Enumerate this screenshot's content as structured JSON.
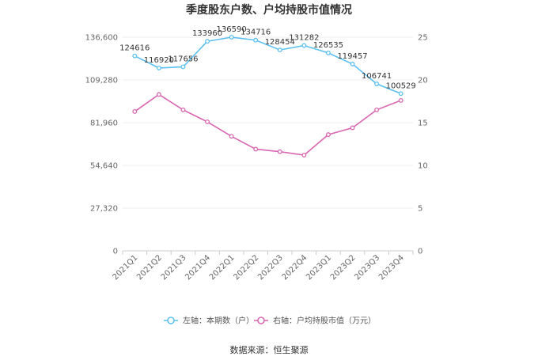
{
  "chart_data": {
    "type": "line",
    "title": "季度股东户数、户均持股市值情况",
    "categories": [
      "2021Q1",
      "2021Q2",
      "2021Q3",
      "2021Q4",
      "2022Q1",
      "2022Q2",
      "2022Q3",
      "2022Q4",
      "2023Q1",
      "2023Q2",
      "2023Q3",
      "2023Q4"
    ],
    "series": [
      {
        "name": "左轴：本期数（户）",
        "axis": "left",
        "color": "#5bc0f0",
        "values": [
          124616,
          116920,
          117656,
          133960,
          136590,
          134716,
          128454,
          131282,
          126535,
          119457,
          106741,
          100529
        ],
        "labels": [
          "124616",
          "116920",
          "117656",
          "133960",
          "136590",
          "134716",
          "128454",
          "131282",
          "126535",
          "119457",
          "106741",
          "100529"
        ]
      },
      {
        "name": "右轴：户均持股市值（万元）",
        "axis": "right",
        "color": "#d966b0",
        "values": [
          16.3,
          18.3,
          16.5,
          15.1,
          13.4,
          11.9,
          11.6,
          11.2,
          13.6,
          14.4,
          16.5,
          17.6
        ]
      }
    ],
    "left_axis": {
      "min": 0,
      "max": 136600,
      "ticks": [
        "0",
        "27,320",
        "54,640",
        "81,960",
        "109,280",
        "136,600"
      ]
    },
    "right_axis": {
      "min": 0,
      "max": 25,
      "ticks": [
        "0",
        "5",
        "10",
        "15",
        "20",
        "25"
      ]
    },
    "grid": true,
    "legend_position": "bottom"
  },
  "source": "数据来源：恒生聚源"
}
